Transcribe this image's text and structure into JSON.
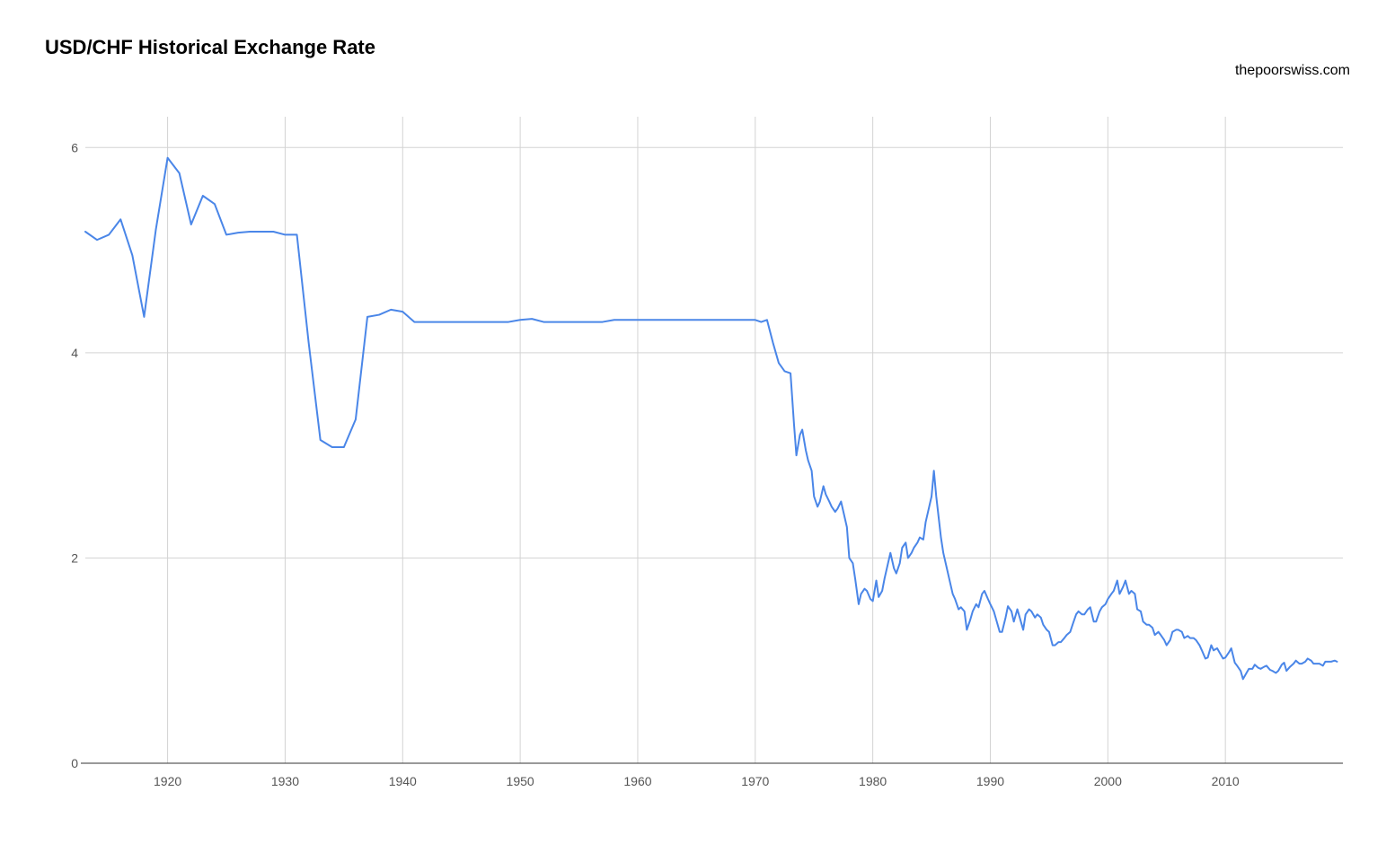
{
  "chart": {
    "type": "line",
    "title": "USD/CHF Historical Exchange Rate",
    "attribution": "thepoorswiss.com",
    "title_fontsize": 22,
    "attribution_fontsize": 16,
    "background_color": "#ffffff",
    "grid_color": "#d3d3d3",
    "axis_color": "#333333",
    "text_color": "#555555",
    "line_color": "#4a86e8",
    "line_width": 2,
    "x": {
      "min": 1913,
      "max": 2020,
      "ticks": [
        1920,
        1930,
        1940,
        1950,
        1960,
        1970,
        1980,
        1990,
        2000,
        2010
      ],
      "label_fontsize": 14
    },
    "y": {
      "min": 0,
      "max": 6.3,
      "ticks": [
        0,
        2,
        4,
        6
      ],
      "label_fontsize": 14
    },
    "series": [
      {
        "x": 1913.0,
        "y": 5.18
      },
      {
        "x": 1914.0,
        "y": 5.1
      },
      {
        "x": 1915.0,
        "y": 5.15
      },
      {
        "x": 1916.0,
        "y": 5.3
      },
      {
        "x": 1917.0,
        "y": 4.95
      },
      {
        "x": 1918.0,
        "y": 4.35
      },
      {
        "x": 1919.0,
        "y": 5.2
      },
      {
        "x": 1920.0,
        "y": 5.9
      },
      {
        "x": 1921.0,
        "y": 5.75
      },
      {
        "x": 1922.0,
        "y": 5.25
      },
      {
        "x": 1923.0,
        "y": 5.53
      },
      {
        "x": 1924.0,
        "y": 5.45
      },
      {
        "x": 1925.0,
        "y": 5.15
      },
      {
        "x": 1926.0,
        "y": 5.17
      },
      {
        "x": 1927.0,
        "y": 5.18
      },
      {
        "x": 1928.0,
        "y": 5.18
      },
      {
        "x": 1929.0,
        "y": 5.18
      },
      {
        "x": 1930.0,
        "y": 5.15
      },
      {
        "x": 1931.0,
        "y": 5.15
      },
      {
        "x": 1932.0,
        "y": 4.1
      },
      {
        "x": 1933.0,
        "y": 3.15
      },
      {
        "x": 1934.0,
        "y": 3.08
      },
      {
        "x": 1935.0,
        "y": 3.08
      },
      {
        "x": 1936.0,
        "y": 3.35
      },
      {
        "x": 1937.0,
        "y": 4.35
      },
      {
        "x": 1938.0,
        "y": 4.37
      },
      {
        "x": 1939.0,
        "y": 4.42
      },
      {
        "x": 1940.0,
        "y": 4.4
      },
      {
        "x": 1941.0,
        "y": 4.3
      },
      {
        "x": 1942.0,
        "y": 4.3
      },
      {
        "x": 1943.0,
        "y": 4.3
      },
      {
        "x": 1944.0,
        "y": 4.3
      },
      {
        "x": 1945.0,
        "y": 4.3
      },
      {
        "x": 1946.0,
        "y": 4.3
      },
      {
        "x": 1947.0,
        "y": 4.3
      },
      {
        "x": 1948.0,
        "y": 4.3
      },
      {
        "x": 1949.0,
        "y": 4.3
      },
      {
        "x": 1950.0,
        "y": 4.32
      },
      {
        "x": 1951.0,
        "y": 4.33
      },
      {
        "x": 1952.0,
        "y": 4.3
      },
      {
        "x": 1953.0,
        "y": 4.3
      },
      {
        "x": 1954.0,
        "y": 4.3
      },
      {
        "x": 1955.0,
        "y": 4.3
      },
      {
        "x": 1956.0,
        "y": 4.3
      },
      {
        "x": 1957.0,
        "y": 4.3
      },
      {
        "x": 1958.0,
        "y": 4.32
      },
      {
        "x": 1959.0,
        "y": 4.32
      },
      {
        "x": 1960.0,
        "y": 4.32
      },
      {
        "x": 1961.0,
        "y": 4.32
      },
      {
        "x": 1962.0,
        "y": 4.32
      },
      {
        "x": 1963.0,
        "y": 4.32
      },
      {
        "x": 1964.0,
        "y": 4.32
      },
      {
        "x": 1965.0,
        "y": 4.32
      },
      {
        "x": 1966.0,
        "y": 4.32
      },
      {
        "x": 1967.0,
        "y": 4.32
      },
      {
        "x": 1968.0,
        "y": 4.32
      },
      {
        "x": 1969.0,
        "y": 4.32
      },
      {
        "x": 1970.0,
        "y": 4.32
      },
      {
        "x": 1970.5,
        "y": 4.3
      },
      {
        "x": 1971.0,
        "y": 4.32
      },
      {
        "x": 1971.5,
        "y": 4.1
      },
      {
        "x": 1972.0,
        "y": 3.9
      },
      {
        "x": 1972.5,
        "y": 3.82
      },
      {
        "x": 1973.0,
        "y": 3.8
      },
      {
        "x": 1973.3,
        "y": 3.3
      },
      {
        "x": 1973.5,
        "y": 3.0
      },
      {
        "x": 1973.8,
        "y": 3.2
      },
      {
        "x": 1974.0,
        "y": 3.25
      },
      {
        "x": 1974.3,
        "y": 3.05
      },
      {
        "x": 1974.5,
        "y": 2.95
      },
      {
        "x": 1974.8,
        "y": 2.85
      },
      {
        "x": 1975.0,
        "y": 2.6
      },
      {
        "x": 1975.3,
        "y": 2.5
      },
      {
        "x": 1975.5,
        "y": 2.55
      },
      {
        "x": 1975.8,
        "y": 2.7
      },
      {
        "x": 1976.0,
        "y": 2.62
      },
      {
        "x": 1976.3,
        "y": 2.55
      },
      {
        "x": 1976.5,
        "y": 2.5
      },
      {
        "x": 1976.8,
        "y": 2.45
      },
      {
        "x": 1977.0,
        "y": 2.48
      },
      {
        "x": 1977.3,
        "y": 2.55
      },
      {
        "x": 1977.5,
        "y": 2.45
      },
      {
        "x": 1977.8,
        "y": 2.3
      },
      {
        "x": 1978.0,
        "y": 2.0
      },
      {
        "x": 1978.3,
        "y": 1.95
      },
      {
        "x": 1978.5,
        "y": 1.8
      },
      {
        "x": 1978.8,
        "y": 1.55
      },
      {
        "x": 1979.0,
        "y": 1.65
      },
      {
        "x": 1979.3,
        "y": 1.7
      },
      {
        "x": 1979.5,
        "y": 1.68
      },
      {
        "x": 1979.8,
        "y": 1.6
      },
      {
        "x": 1980.0,
        "y": 1.58
      },
      {
        "x": 1980.3,
        "y": 1.78
      },
      {
        "x": 1980.5,
        "y": 1.62
      },
      {
        "x": 1980.8,
        "y": 1.68
      },
      {
        "x": 1981.0,
        "y": 1.8
      },
      {
        "x": 1981.3,
        "y": 1.95
      },
      {
        "x": 1981.5,
        "y": 2.05
      },
      {
        "x": 1981.8,
        "y": 1.9
      },
      {
        "x": 1982.0,
        "y": 1.85
      },
      {
        "x": 1982.3,
        "y": 1.95
      },
      {
        "x": 1982.5,
        "y": 2.1
      },
      {
        "x": 1982.8,
        "y": 2.15
      },
      {
        "x": 1983.0,
        "y": 2.0
      },
      {
        "x": 1983.3,
        "y": 2.05
      },
      {
        "x": 1983.5,
        "y": 2.1
      },
      {
        "x": 1983.8,
        "y": 2.15
      },
      {
        "x": 1984.0,
        "y": 2.2
      },
      {
        "x": 1984.3,
        "y": 2.18
      },
      {
        "x": 1984.5,
        "y": 2.35
      },
      {
        "x": 1984.8,
        "y": 2.5
      },
      {
        "x": 1985.0,
        "y": 2.6
      },
      {
        "x": 1985.2,
        "y": 2.85
      },
      {
        "x": 1985.4,
        "y": 2.6
      },
      {
        "x": 1985.6,
        "y": 2.4
      },
      {
        "x": 1985.8,
        "y": 2.2
      },
      {
        "x": 1986.0,
        "y": 2.05
      },
      {
        "x": 1986.3,
        "y": 1.9
      },
      {
        "x": 1986.5,
        "y": 1.8
      },
      {
        "x": 1986.8,
        "y": 1.65
      },
      {
        "x": 1987.0,
        "y": 1.6
      },
      {
        "x": 1987.3,
        "y": 1.5
      },
      {
        "x": 1987.5,
        "y": 1.52
      },
      {
        "x": 1987.8,
        "y": 1.48
      },
      {
        "x": 1988.0,
        "y": 1.3
      },
      {
        "x": 1988.3,
        "y": 1.4
      },
      {
        "x": 1988.5,
        "y": 1.48
      },
      {
        "x": 1988.8,
        "y": 1.55
      },
      {
        "x": 1989.0,
        "y": 1.52
      },
      {
        "x": 1989.3,
        "y": 1.65
      },
      {
        "x": 1989.5,
        "y": 1.68
      },
      {
        "x": 1989.8,
        "y": 1.6
      },
      {
        "x": 1990.0,
        "y": 1.55
      },
      {
        "x": 1990.3,
        "y": 1.48
      },
      {
        "x": 1990.5,
        "y": 1.4
      },
      {
        "x": 1990.8,
        "y": 1.28
      },
      {
        "x": 1991.0,
        "y": 1.28
      },
      {
        "x": 1991.3,
        "y": 1.42
      },
      {
        "x": 1991.5,
        "y": 1.53
      },
      {
        "x": 1991.8,
        "y": 1.48
      },
      {
        "x": 1992.0,
        "y": 1.38
      },
      {
        "x": 1992.3,
        "y": 1.5
      },
      {
        "x": 1992.5,
        "y": 1.42
      },
      {
        "x": 1992.8,
        "y": 1.3
      },
      {
        "x": 1993.0,
        "y": 1.45
      },
      {
        "x": 1993.3,
        "y": 1.5
      },
      {
        "x": 1993.5,
        "y": 1.48
      },
      {
        "x": 1993.8,
        "y": 1.42
      },
      {
        "x": 1994.0,
        "y": 1.45
      },
      {
        "x": 1994.3,
        "y": 1.42
      },
      {
        "x": 1994.5,
        "y": 1.35
      },
      {
        "x": 1994.8,
        "y": 1.3
      },
      {
        "x": 1995.0,
        "y": 1.28
      },
      {
        "x": 1995.3,
        "y": 1.15
      },
      {
        "x": 1995.5,
        "y": 1.15
      },
      {
        "x": 1995.8,
        "y": 1.18
      },
      {
        "x": 1996.0,
        "y": 1.18
      },
      {
        "x": 1996.3,
        "y": 1.22
      },
      {
        "x": 1996.5,
        "y": 1.25
      },
      {
        "x": 1996.8,
        "y": 1.28
      },
      {
        "x": 1997.0,
        "y": 1.35
      },
      {
        "x": 1997.3,
        "y": 1.45
      },
      {
        "x": 1997.5,
        "y": 1.48
      },
      {
        "x": 1997.8,
        "y": 1.45
      },
      {
        "x": 1998.0,
        "y": 1.45
      },
      {
        "x": 1998.3,
        "y": 1.5
      },
      {
        "x": 1998.5,
        "y": 1.52
      },
      {
        "x": 1998.8,
        "y": 1.38
      },
      {
        "x": 1999.0,
        "y": 1.38
      },
      {
        "x": 1999.3,
        "y": 1.48
      },
      {
        "x": 1999.5,
        "y": 1.52
      },
      {
        "x": 1999.8,
        "y": 1.55
      },
      {
        "x": 2000.0,
        "y": 1.6
      },
      {
        "x": 2000.3,
        "y": 1.65
      },
      {
        "x": 2000.5,
        "y": 1.68
      },
      {
        "x": 2000.8,
        "y": 1.78
      },
      {
        "x": 2001.0,
        "y": 1.65
      },
      {
        "x": 2001.3,
        "y": 1.72
      },
      {
        "x": 2001.5,
        "y": 1.78
      },
      {
        "x": 2001.8,
        "y": 1.65
      },
      {
        "x": 2002.0,
        "y": 1.68
      },
      {
        "x": 2002.3,
        "y": 1.65
      },
      {
        "x": 2002.5,
        "y": 1.5
      },
      {
        "x": 2002.8,
        "y": 1.48
      },
      {
        "x": 2003.0,
        "y": 1.38
      },
      {
        "x": 2003.3,
        "y": 1.35
      },
      {
        "x": 2003.5,
        "y": 1.35
      },
      {
        "x": 2003.8,
        "y": 1.32
      },
      {
        "x": 2004.0,
        "y": 1.25
      },
      {
        "x": 2004.3,
        "y": 1.28
      },
      {
        "x": 2004.5,
        "y": 1.25
      },
      {
        "x": 2004.8,
        "y": 1.2
      },
      {
        "x": 2005.0,
        "y": 1.15
      },
      {
        "x": 2005.3,
        "y": 1.2
      },
      {
        "x": 2005.5,
        "y": 1.28
      },
      {
        "x": 2005.8,
        "y": 1.3
      },
      {
        "x": 2006.0,
        "y": 1.3
      },
      {
        "x": 2006.3,
        "y": 1.28
      },
      {
        "x": 2006.5,
        "y": 1.22
      },
      {
        "x": 2006.8,
        "y": 1.24
      },
      {
        "x": 2007.0,
        "y": 1.22
      },
      {
        "x": 2007.3,
        "y": 1.22
      },
      {
        "x": 2007.5,
        "y": 1.2
      },
      {
        "x": 2007.8,
        "y": 1.15
      },
      {
        "x": 2008.0,
        "y": 1.1
      },
      {
        "x": 2008.3,
        "y": 1.02
      },
      {
        "x": 2008.5,
        "y": 1.03
      },
      {
        "x": 2008.8,
        "y": 1.15
      },
      {
        "x": 2009.0,
        "y": 1.1
      },
      {
        "x": 2009.3,
        "y": 1.12
      },
      {
        "x": 2009.5,
        "y": 1.08
      },
      {
        "x": 2009.8,
        "y": 1.02
      },
      {
        "x": 2010.0,
        "y": 1.03
      },
      {
        "x": 2010.3,
        "y": 1.08
      },
      {
        "x": 2010.5,
        "y": 1.12
      },
      {
        "x": 2010.8,
        "y": 0.98
      },
      {
        "x": 2011.0,
        "y": 0.95
      },
      {
        "x": 2011.3,
        "y": 0.9
      },
      {
        "x": 2011.5,
        "y": 0.82
      },
      {
        "x": 2011.8,
        "y": 0.88
      },
      {
        "x": 2012.0,
        "y": 0.92
      },
      {
        "x": 2012.3,
        "y": 0.92
      },
      {
        "x": 2012.5,
        "y": 0.96
      },
      {
        "x": 2012.8,
        "y": 0.93
      },
      {
        "x": 2013.0,
        "y": 0.92
      },
      {
        "x": 2013.3,
        "y": 0.94
      },
      {
        "x": 2013.5,
        "y": 0.95
      },
      {
        "x": 2013.8,
        "y": 0.91
      },
      {
        "x": 2014.0,
        "y": 0.9
      },
      {
        "x": 2014.3,
        "y": 0.88
      },
      {
        "x": 2014.5,
        "y": 0.9
      },
      {
        "x": 2014.8,
        "y": 0.96
      },
      {
        "x": 2015.0,
        "y": 0.98
      },
      {
        "x": 2015.2,
        "y": 0.9
      },
      {
        "x": 2015.5,
        "y": 0.94
      },
      {
        "x": 2015.8,
        "y": 0.97
      },
      {
        "x": 2016.0,
        "y": 1.0
      },
      {
        "x": 2016.3,
        "y": 0.97
      },
      {
        "x": 2016.5,
        "y": 0.97
      },
      {
        "x": 2016.8,
        "y": 0.99
      },
      {
        "x": 2017.0,
        "y": 1.02
      },
      {
        "x": 2017.3,
        "y": 1.0
      },
      {
        "x": 2017.5,
        "y": 0.97
      },
      {
        "x": 2017.8,
        "y": 0.97
      },
      {
        "x": 2018.0,
        "y": 0.97
      },
      {
        "x": 2018.3,
        "y": 0.95
      },
      {
        "x": 2018.5,
        "y": 0.99
      },
      {
        "x": 2018.8,
        "y": 0.99
      },
      {
        "x": 2019.0,
        "y": 0.99
      },
      {
        "x": 2019.3,
        "y": 1.0
      },
      {
        "x": 2019.5,
        "y": 0.99
      }
    ]
  }
}
